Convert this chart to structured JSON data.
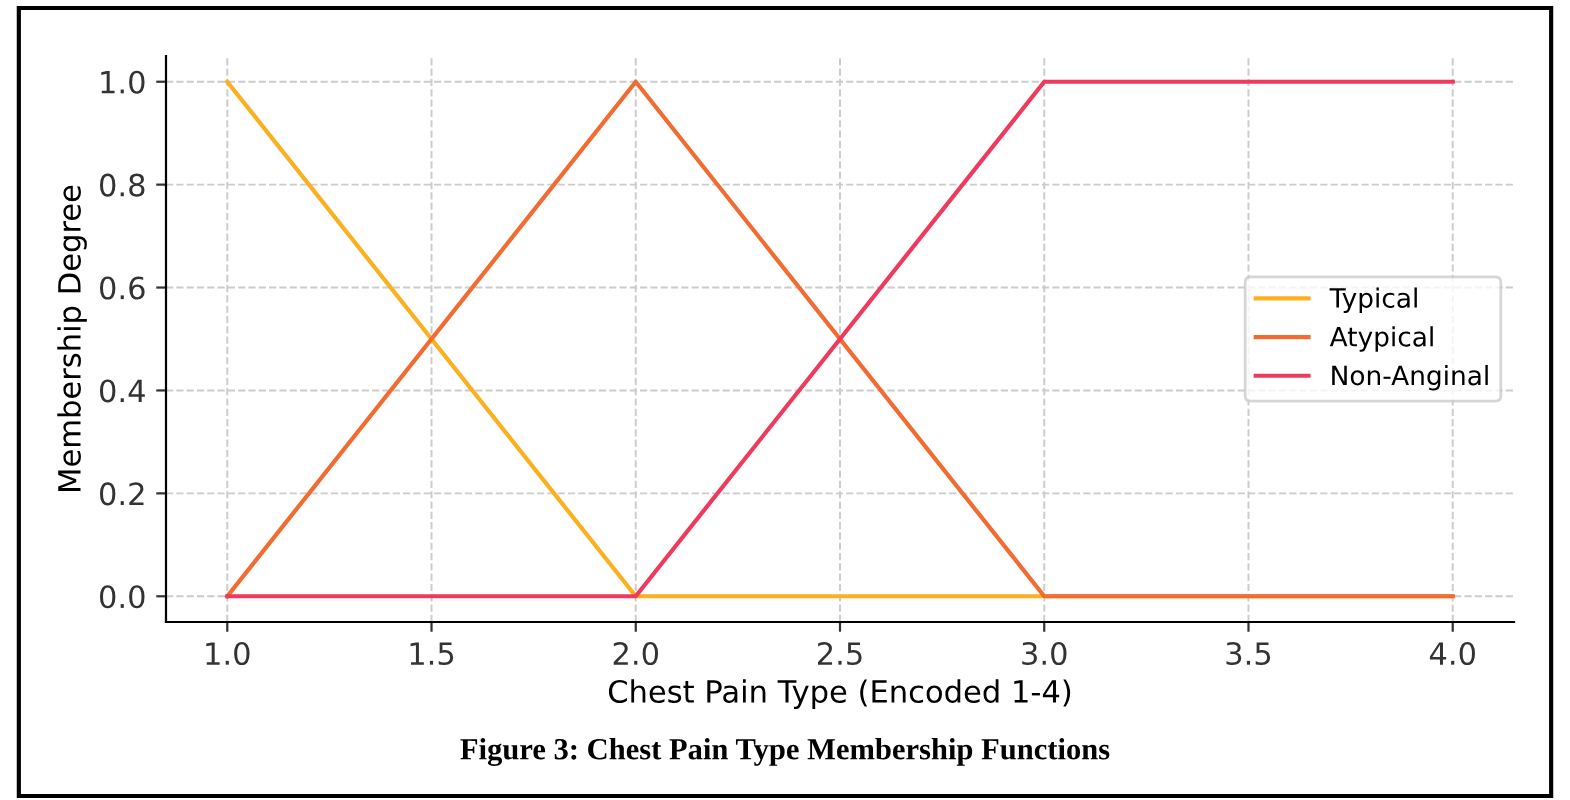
{
  "chart_data": {
    "type": "line",
    "xlabel": "Chest Pain Type (Encoded 1-4)",
    "ylabel": "Membership Degree",
    "x": [
      1,
      2,
      3,
      4
    ],
    "series": [
      {
        "name": "Typical",
        "color": "#fbb020",
        "values": [
          1,
          0,
          0,
          0
        ]
      },
      {
        "name": "Atypical",
        "color": "#f26b30",
        "values": [
          0,
          1,
          0,
          0
        ]
      },
      {
        "name": "Non-Anginal",
        "color": "#ef3a5d",
        "values": [
          0,
          0,
          1,
          1
        ]
      }
    ],
    "xlim": [
      0.85,
      4.15
    ],
    "ylim": [
      -0.05,
      1.05
    ],
    "xticks": [
      {
        "value": 1,
        "label": "1.0"
      },
      {
        "value": 1.5,
        "label": "1.5"
      },
      {
        "value": 2,
        "label": "2.0"
      },
      {
        "value": 2.5,
        "label": "2.5"
      },
      {
        "value": 3,
        "label": "3.0"
      },
      {
        "value": 3.5,
        "label": "3.5"
      },
      {
        "value": 4,
        "label": "4.0"
      }
    ],
    "yticks": [
      {
        "value": 0,
        "label": "0.0"
      },
      {
        "value": 0.2,
        "label": "0.2"
      },
      {
        "value": 0.4,
        "label": "0.4"
      },
      {
        "value": 0.6,
        "label": "0.6"
      },
      {
        "value": 0.8,
        "label": "0.8"
      },
      {
        "value": 1,
        "label": "1.0"
      }
    ],
    "grid": true,
    "legend": "right",
    "marker": "none",
    "line_style": "solid",
    "annotations": [
      "Figure 3: Chest Pain Type Membership Functions"
    ]
  }
}
